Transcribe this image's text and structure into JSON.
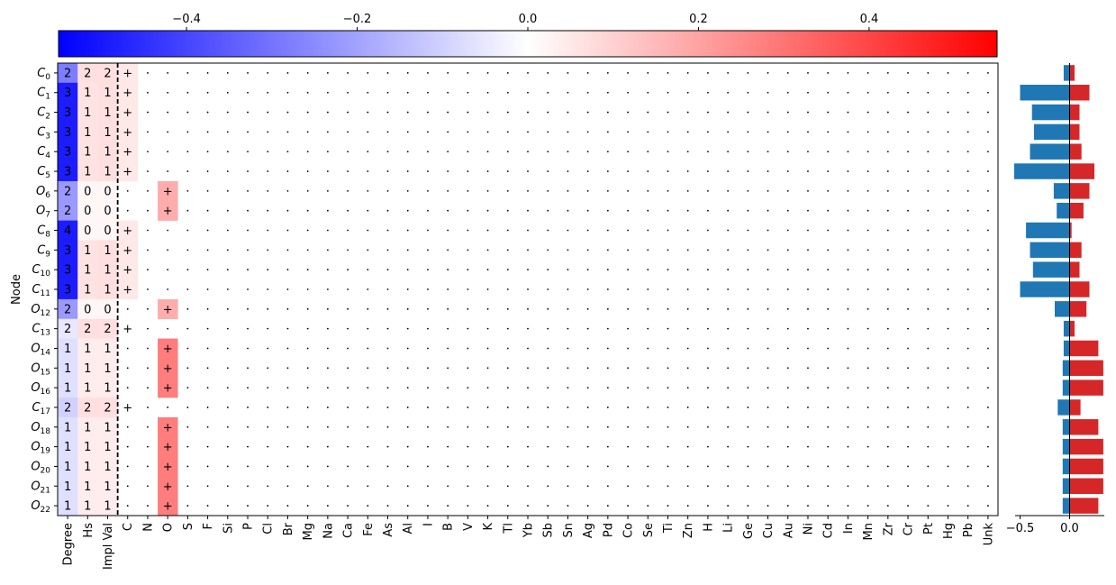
{
  "chart_data": [
    {
      "type": "heatmap",
      "ylabel": "Node",
      "colorbar": {
        "range": [
          -0.55,
          0.55
        ],
        "ticks": [
          "−0.4",
          "−0.2",
          "0.0",
          "0.2",
          "0.4"
        ],
        "tick_values": [
          -0.4,
          -0.2,
          0.0,
          0.2,
          0.4
        ],
        "colors": [
          "#0000ff",
          "#ffffff",
          "#ff0000"
        ]
      },
      "columns": [
        "Degree",
        "Hs",
        "Impl Val",
        "C",
        "N",
        "O",
        "S",
        "F",
        "Si",
        "P",
        "Cl",
        "Br",
        "Mg",
        "Na",
        "Ca",
        "Fe",
        "As",
        "Al",
        "I",
        "B",
        "V",
        "K",
        "Tl",
        "Yb",
        "Sb",
        "Sn",
        "Ag",
        "Pd",
        "Co",
        "Se",
        "Ti",
        "Zn",
        "H",
        "Li",
        "Ge",
        "Cu",
        "Au",
        "Ni",
        "Cd",
        "In",
        "Mn",
        "Zr",
        "Cr",
        "Pt",
        "Hg",
        "Pb",
        "Unk"
      ],
      "separator_after_column": "Impl Val",
      "dot_symbol": ".",
      "plus_symbol": "+",
      "rows": [
        {
          "element": "C",
          "index": "0",
          "values": [
            "2",
            "2",
            "2"
          ],
          "atom": "C",
          "w": [
            -0.28,
            0.07,
            0.07,
            0.05
          ]
        },
        {
          "element": "C",
          "index": "1",
          "values": [
            "3",
            "1",
            "1"
          ],
          "atom": "C",
          "w": [
            -0.49,
            0.06,
            0.07,
            0.05
          ]
        },
        {
          "element": "C",
          "index": "2",
          "values": [
            "3",
            "1",
            "1"
          ],
          "atom": "C",
          "w": [
            -0.49,
            0.06,
            0.07,
            0.05
          ]
        },
        {
          "element": "C",
          "index": "3",
          "values": [
            "3",
            "1",
            "1"
          ],
          "atom": "C",
          "w": [
            -0.49,
            0.06,
            0.07,
            0.05
          ]
        },
        {
          "element": "C",
          "index": "4",
          "values": [
            "3",
            "1",
            "1"
          ],
          "atom": "C",
          "w": [
            -0.49,
            0.06,
            0.07,
            0.05
          ]
        },
        {
          "element": "C",
          "index": "5",
          "values": [
            "3",
            "1",
            "1"
          ],
          "atom": "C",
          "w": [
            -0.49,
            0.06,
            0.07,
            0.05
          ]
        },
        {
          "element": "O",
          "index": "6",
          "values": [
            "2",
            "0",
            "0"
          ],
          "atom": "O",
          "w": [
            -0.22,
            0.02,
            0.02,
            0.18
          ]
        },
        {
          "element": "O",
          "index": "7",
          "values": [
            "2",
            "0",
            "0"
          ],
          "atom": "O",
          "w": [
            -0.22,
            0.02,
            0.02,
            0.18
          ]
        },
        {
          "element": "C",
          "index": "8",
          "values": [
            "4",
            "0",
            "0"
          ],
          "atom": "C",
          "w": [
            -0.49,
            0.02,
            0.02,
            0.05
          ]
        },
        {
          "element": "C",
          "index": "9",
          "values": [
            "3",
            "1",
            "1"
          ],
          "atom": "C",
          "w": [
            -0.49,
            0.06,
            0.07,
            0.05
          ]
        },
        {
          "element": "C",
          "index": "10",
          "values": [
            "3",
            "1",
            "1"
          ],
          "atom": "C",
          "w": [
            -0.49,
            0.06,
            0.07,
            0.05
          ]
        },
        {
          "element": "C",
          "index": "11",
          "values": [
            "3",
            "1",
            "1"
          ],
          "atom": "C",
          "w": [
            -0.49,
            0.06,
            0.07,
            0.05
          ]
        },
        {
          "element": "O",
          "index": "12",
          "values": [
            "2",
            "0",
            "0"
          ],
          "atom": "O",
          "w": [
            -0.22,
            0.02,
            0.02,
            0.18
          ]
        },
        {
          "element": "C",
          "index": "13",
          "values": [
            "2",
            "2",
            "2"
          ],
          "atom": "C",
          "w": [
            -0.05,
            0.07,
            0.07,
            0.0
          ]
        },
        {
          "element": "O",
          "index": "14",
          "values": [
            "1",
            "1",
            "1"
          ],
          "atom": "O",
          "w": [
            -0.07,
            0.04,
            0.04,
            0.28
          ]
        },
        {
          "element": "O",
          "index": "15",
          "values": [
            "1",
            "1",
            "1"
          ],
          "atom": "O",
          "w": [
            -0.07,
            0.04,
            0.04,
            0.28
          ]
        },
        {
          "element": "O",
          "index": "16",
          "values": [
            "1",
            "1",
            "1"
          ],
          "atom": "O",
          "w": [
            -0.07,
            0.04,
            0.04,
            0.28
          ]
        },
        {
          "element": "C",
          "index": "17",
          "values": [
            "2",
            "2",
            "2"
          ],
          "atom": "C",
          "w": [
            -0.1,
            0.07,
            0.07,
            0.0
          ]
        },
        {
          "element": "O",
          "index": "18",
          "values": [
            "1",
            "1",
            "1"
          ],
          "atom": "O",
          "w": [
            -0.07,
            0.04,
            0.04,
            0.28
          ]
        },
        {
          "element": "O",
          "index": "19",
          "values": [
            "1",
            "1",
            "1"
          ],
          "atom": "O",
          "w": [
            -0.07,
            0.04,
            0.04,
            0.28
          ]
        },
        {
          "element": "O",
          "index": "20",
          "values": [
            "1",
            "1",
            "1"
          ],
          "atom": "O",
          "w": [
            -0.07,
            0.04,
            0.04,
            0.28
          ]
        },
        {
          "element": "O",
          "index": "21",
          "values": [
            "1",
            "1",
            "1"
          ],
          "atom": "O",
          "w": [
            -0.07,
            0.04,
            0.04,
            0.28
          ]
        },
        {
          "element": "O",
          "index": "22",
          "values": [
            "1",
            "1",
            "1"
          ],
          "atom": "O",
          "w": [
            -0.07,
            0.04,
            0.04,
            0.28
          ]
        }
      ]
    },
    {
      "type": "bar",
      "orientation": "horizontal",
      "xlim": [
        -0.55,
        0.35
      ],
      "xticks": [
        "−0.5",
        "0.0"
      ],
      "xtick_values": [
        -0.5,
        0.0
      ],
      "series": [
        {
          "color": "#1f77b4",
          "values": [
            -0.06,
            -0.5,
            -0.38,
            -0.36,
            -0.4,
            -0.56,
            -0.16,
            -0.13,
            -0.44,
            -0.4,
            -0.37,
            -0.5,
            -0.15,
            -0.06,
            -0.06,
            -0.07,
            -0.07,
            -0.12,
            -0.07,
            -0.07,
            -0.07,
            -0.07,
            -0.07
          ]
        },
        {
          "color": "#d62728",
          "values": [
            0.05,
            0.2,
            0.1,
            0.1,
            0.12,
            0.25,
            0.2,
            0.14,
            0.02,
            0.12,
            0.1,
            0.2,
            0.17,
            0.05,
            0.29,
            0.34,
            0.34,
            0.11,
            0.29,
            0.34,
            0.34,
            0.34,
            0.29
          ]
        }
      ]
    }
  ]
}
